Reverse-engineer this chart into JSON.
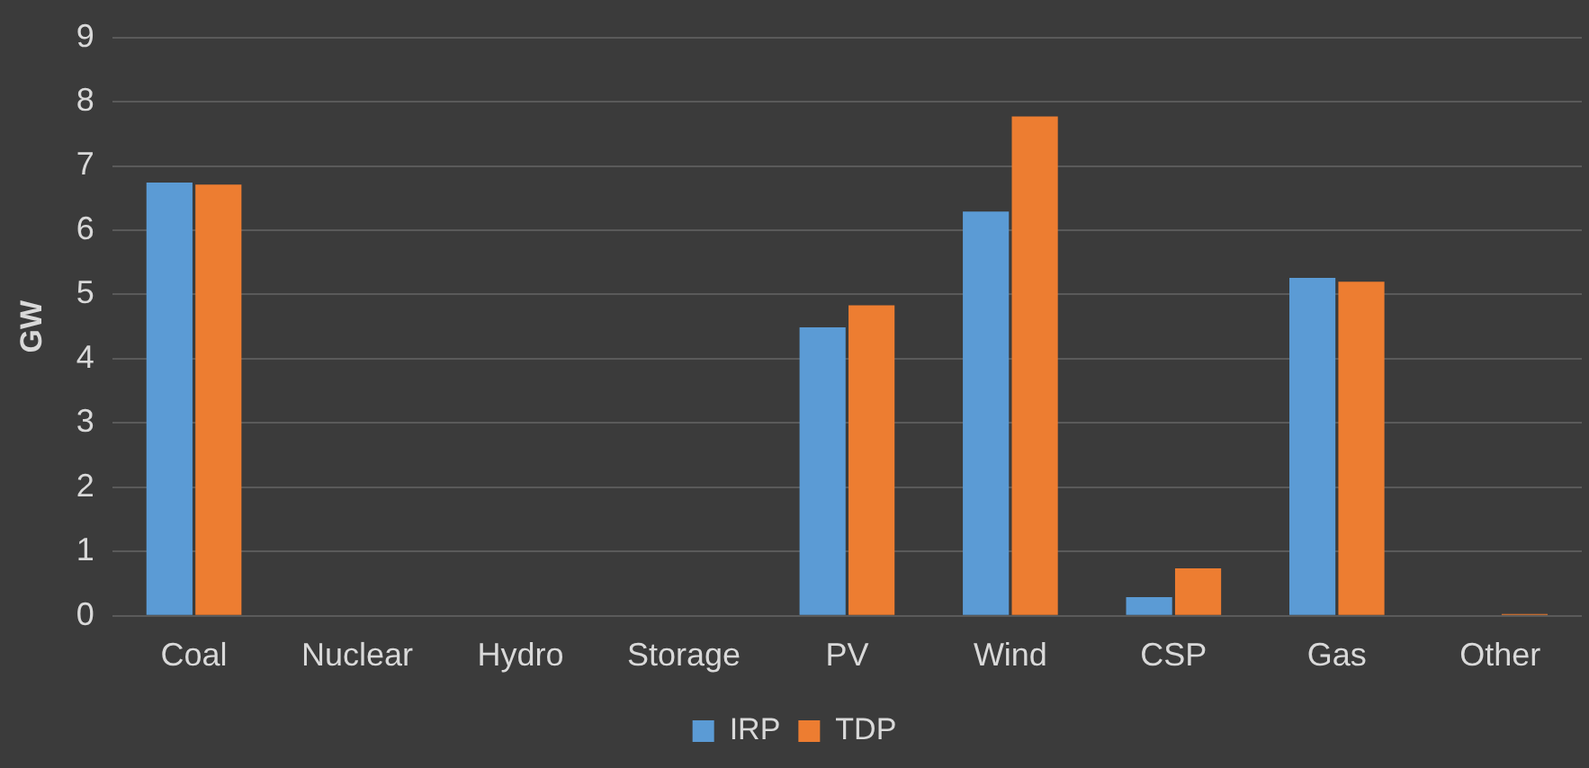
{
  "chart_data": {
    "type": "bar",
    "ylabel": "GW",
    "categories": [
      "Coal",
      "Nuclear",
      "Hydro",
      "Storage",
      "PV",
      "Wind",
      "CSP",
      "Gas",
      "Other"
    ],
    "series": [
      {
        "name": "IRP",
        "color": "#5b9bd5",
        "values": [
          6.74,
          0,
          0,
          0,
          4.49,
          6.29,
          0.29,
          5.26,
          0
        ]
      },
      {
        "name": "TDP",
        "color": "#ed7d31",
        "values": [
          6.71,
          0,
          0,
          0,
          4.83,
          7.77,
          0.74,
          5.2,
          0.03
        ]
      }
    ],
    "ylim": [
      0,
      9
    ],
    "yticks": [
      0,
      1,
      2,
      3,
      4,
      5,
      6,
      7,
      8,
      9
    ],
    "grid": "y",
    "legend": "bottom"
  }
}
